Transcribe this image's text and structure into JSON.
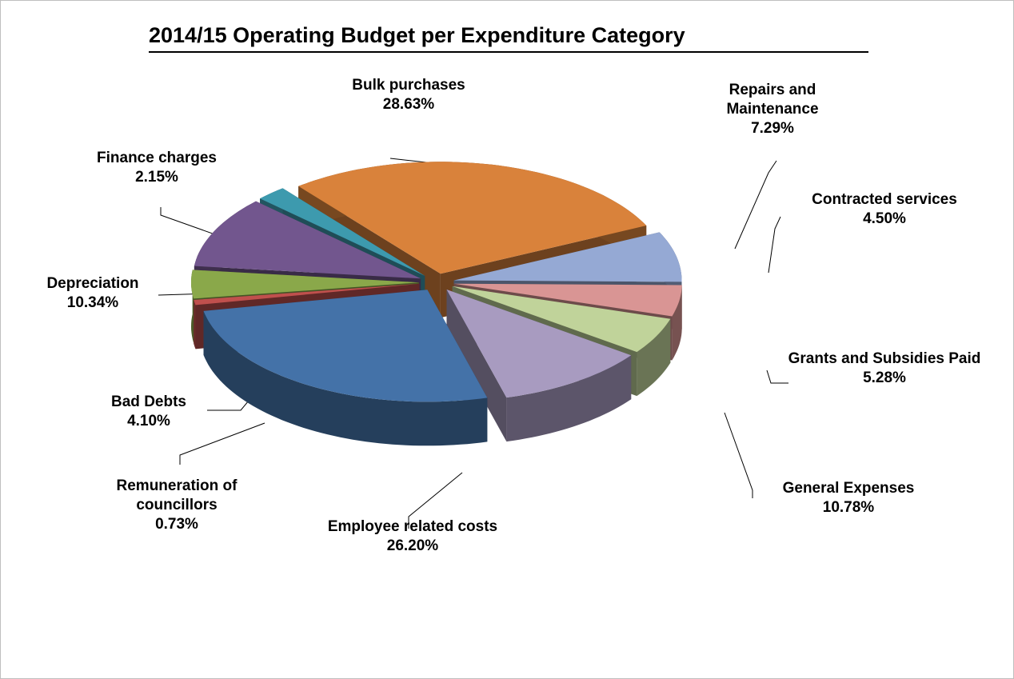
{
  "chart_data": {
    "type": "pie",
    "title": "2014/15 Operating Budget per Expenditure Category",
    "categories": [
      "Bulk purchases",
      "Repairs and Maintenance",
      "Contracted services",
      "Grants and Subsidies Paid",
      "General Expenses",
      "Employee related costs",
      "Remuneration of councillors",
      "Bad Debts",
      "Depreciation",
      "Finance charges"
    ],
    "values": [
      28.63,
      7.29,
      4.5,
      5.28,
      10.78,
      26.2,
      0.73,
      4.1,
      10.34,
      2.15
    ],
    "value_labels": [
      "28.63%",
      "7.29%",
      "4.50%",
      "5.28%",
      "10.78%",
      "26.20%",
      "0.73%",
      "4.10%",
      "10.34%",
      "2.15%"
    ],
    "colors": [
      "#d9823b",
      "#95a9d4",
      "#d99594",
      "#c0d39a",
      "#a89bc0",
      "#4472a8",
      "#c0504d",
      "#8aa84a",
      "#72568e",
      "#3d9aae"
    ]
  }
}
